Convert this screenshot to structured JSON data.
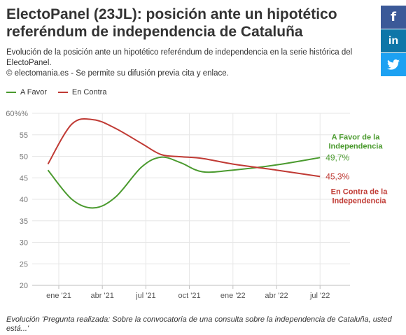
{
  "title": "ElectoPanel (23JL): posición ante un hipotético referéndum de independencia de Cataluña",
  "subtitle_line1": "Evolución de la posición ante un hipotético referéndum de independencia en la serie histórica del ElectoPanel.",
  "subtitle_line2": "© electomania.es - Se permite su difusión previa cita y enlace.",
  "footer": "Evolución 'Pregunta realizada: Sobre la convocatoria de una consulta sobre la independencia de Cataluña, usted está...'",
  "share": {
    "facebook": "f",
    "linkedin": "in",
    "twitter_icon": "twitter-icon"
  },
  "colors": {
    "favor": "#4a9a2e",
    "contra": "#c03a34"
  },
  "chart_data": {
    "type": "line",
    "x_labels": [
      "ene '21",
      "abr '21",
      "jul '21",
      "oct '21",
      "ene '22",
      "abr '22",
      "jul '22"
    ],
    "y_ticks": [
      "60%%",
      "55",
      "50",
      "45",
      "40",
      "35",
      "30",
      "25",
      "20"
    ],
    "ylim": [
      20,
      60
    ],
    "grid": true,
    "legend_position": "top-left",
    "series": [
      {
        "name": "A Favor",
        "color": "#4a9a2e",
        "points": [
          [
            -0.25,
            46.8
          ],
          [
            0.3,
            40.0
          ],
          [
            0.8,
            38.0
          ],
          [
            1.3,
            40.5
          ],
          [
            1.9,
            47.5
          ],
          [
            2.35,
            49.8
          ],
          [
            2.8,
            48.5
          ],
          [
            3.3,
            46.4
          ],
          [
            4.0,
            46.8
          ],
          [
            5.0,
            48.0
          ],
          [
            6.0,
            49.7
          ]
        ]
      },
      {
        "name": "En Contra",
        "color": "#c03a34",
        "points": [
          [
            -0.25,
            48.2
          ],
          [
            0.3,
            57.5
          ],
          [
            0.8,
            58.5
          ],
          [
            1.3,
            56.5
          ],
          [
            1.9,
            53.0
          ],
          [
            2.35,
            50.4
          ],
          [
            2.8,
            49.9
          ],
          [
            3.3,
            49.5
          ],
          [
            4.0,
            48.2
          ],
          [
            5.0,
            46.8
          ],
          [
            6.0,
            45.3
          ]
        ]
      }
    ],
    "end_labels": [
      {
        "value": "49,7%",
        "name_line1": "A Favor de la",
        "name_line2": "Independencia"
      },
      {
        "value": "45,3%",
        "name_line1": "En Contra de la",
        "name_line2": "Independencia"
      }
    ]
  }
}
